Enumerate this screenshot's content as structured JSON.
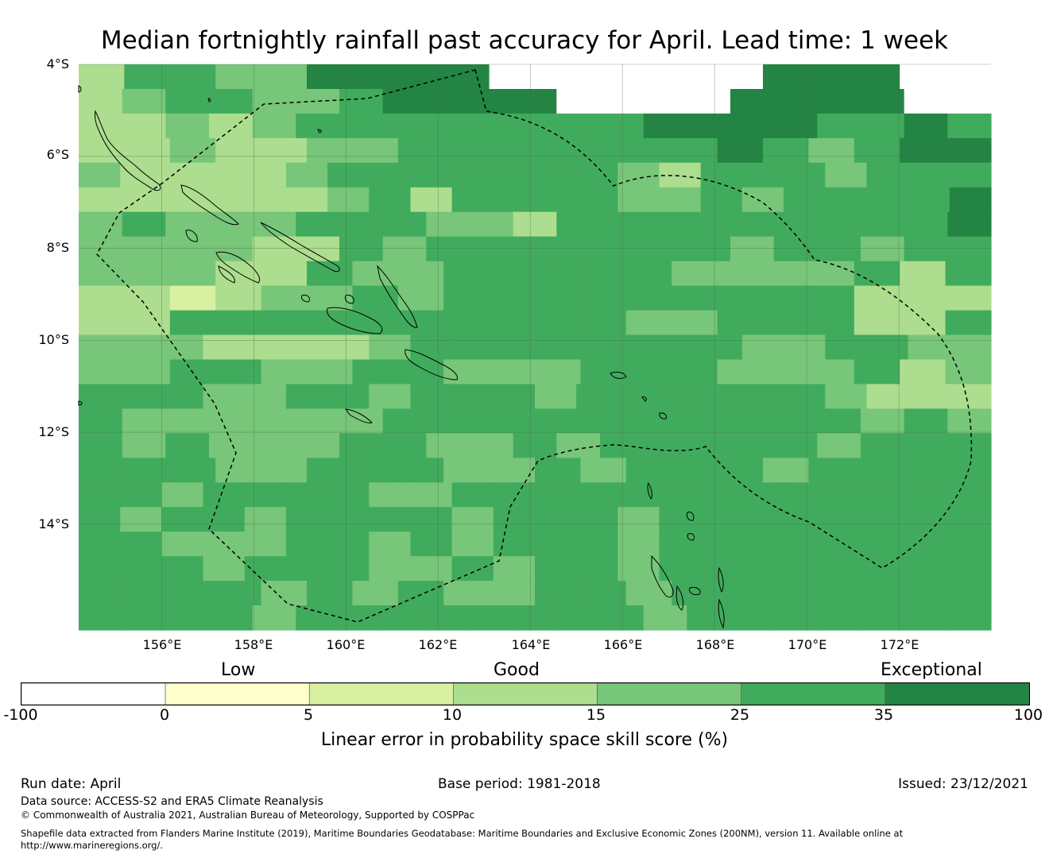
{
  "title": "Median fortnightly rainfall past accuracy for April. Lead time: 1 week",
  "map": {
    "lat_labels": [
      "4°S",
      "6°S",
      "8°S",
      "10°S",
      "12°S",
      "14°S"
    ],
    "lon_labels": [
      "156°E",
      "158°E",
      "160°E",
      "162°E",
      "164°E",
      "166°E",
      "168°E",
      "170°E",
      "172°E"
    ],
    "extent": {
      "lon_min": 154.2,
      "lon_max": 174.0,
      "lat_top": -4.0,
      "lat_bottom": -16.3
    },
    "grid_cols_start_lon": 154.2,
    "grid_cell_deg": 0.833,
    "skill_class_rows": [
      "24433555566666655566",
      "234433455556666555566",
      "223234444444455554454",
      "22322334444444543455",
      "3222234444444324443444",
      "2222223424444334344445",
      "343334443324444444445",
      "333322434444444344344",
      "33322433444443333424",
      "22123343444444444222",
      "22444444444433444224",
      "3332222344444444334433",
      "33443344333444333423",
      "4443344344434444443222",
      "433333344444444444343",
      "434333443343444443444",
      "44433444334344434444",
      "4434444334444444444444",
      "4344344443444344444444",
      "4433344343444344444444",
      "4443444334344344444444",
      "44443434334434444444",
      "444434444444434444444"
    ],
    "eez_outline_label": "",
    "colors": {
      "class_-1": "#ffffff",
      "class_0": "#ffffcc",
      "class_1": "#d9f0a3",
      "class_2": "#addd8e",
      "class_3": "#78c679",
      "class_4": "#41ab5d",
      "class_5": "#238443"
    }
  },
  "colorbar": {
    "category_labels": {
      "low": "Low",
      "good": "Good",
      "exceptional": "Exceptional"
    },
    "ticks": [
      "-100",
      "0",
      "5",
      "10",
      "15",
      "25",
      "35",
      "100"
    ],
    "colors": [
      "#ffffff",
      "#ffffcc",
      "#d9f0a3",
      "#addd8e",
      "#78c679",
      "#41ab5d",
      "#238443"
    ],
    "title": "Linear error in probability space skill score (%)"
  },
  "footer": {
    "run_date": "Run date: April",
    "base_period": "Base period: 1981-2018",
    "issued": "Issued: 23/12/2021",
    "data_source": "Data source: ACCESS-S2 and ERA5 Climate Reanalysis",
    "copyright": "© Commonwealth of Australia 2021, Australian Bureau of Meteorology, Supported by COSPPac",
    "shapefile_line1": "Shapefile data extracted from Flanders Marine Institute (2019), Maritime Boundaries Geodatabase: Maritime Boundaries and Exclusive Economic Zones (200NM), version 11. Available online at",
    "shapefile_line2": "http://www.marineregions.org/."
  }
}
